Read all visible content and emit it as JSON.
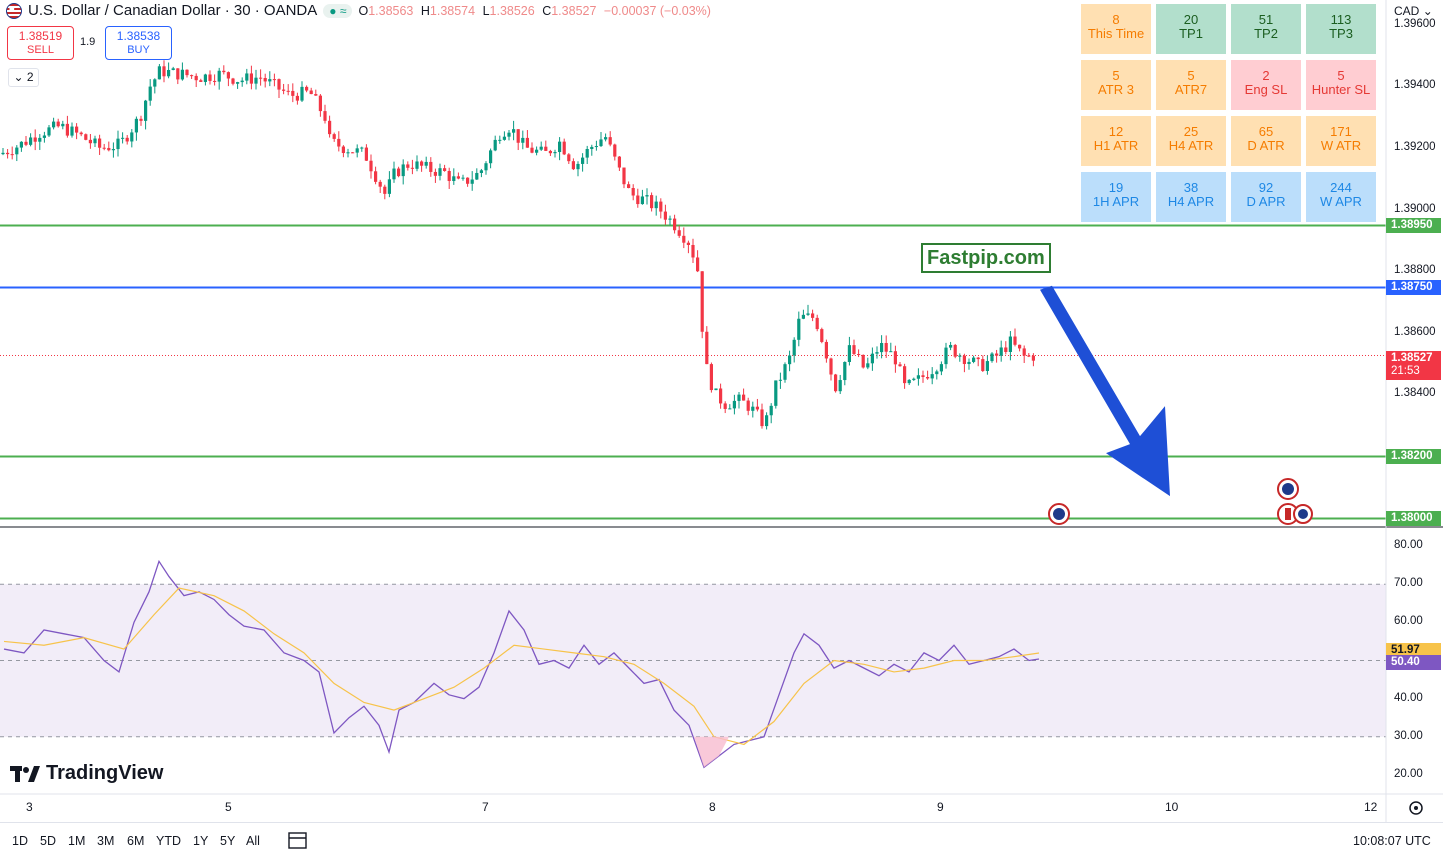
{
  "header": {
    "symbol": "U.S. Dollar / Canadian Dollar · 30 · OANDA",
    "status": "≈",
    "ohlc": {
      "o_label": "O",
      "o": "1.38563",
      "h_label": "H",
      "h": "1.38574",
      "l_label": "L",
      "l": "1.38526",
      "c_label": "C",
      "c": "1.38527",
      "change": "−0.00037 (−0.03%)"
    },
    "sell_price": "1.38519",
    "sell_label": "SELL",
    "buy_price": "1.38538",
    "buy_label": "BUY",
    "spread": "1.9",
    "collapse_count": "2"
  },
  "info_grid": [
    [
      {
        "v": "8",
        "l": "This Time",
        "c": "orange"
      },
      {
        "v": "20",
        "l": "TP1",
        "c": "green"
      },
      {
        "v": "51",
        "l": "TP2",
        "c": "green"
      },
      {
        "v": "113",
        "l": "TP3",
        "c": "green"
      }
    ],
    [
      {
        "v": "5",
        "l": "ATR 3",
        "c": "orange"
      },
      {
        "v": "5",
        "l": "ATR7",
        "c": "orange"
      },
      {
        "v": "2",
        "l": "Eng SL",
        "c": "pink"
      },
      {
        "v": "5",
        "l": "Hunter SL",
        "c": "pink"
      }
    ],
    [
      {
        "v": "12",
        "l": "H1 ATR",
        "c": "orange"
      },
      {
        "v": "25",
        "l": "H4 ATR",
        "c": "orange"
      },
      {
        "v": "65",
        "l": "D ATR",
        "c": "orange"
      },
      {
        "v": "171",
        "l": "W ATR",
        "c": "orange"
      }
    ],
    [
      {
        "v": "19",
        "l": "1H APR",
        "c": "blue"
      },
      {
        "v": "38",
        "l": "H4 APR",
        "c": "blue"
      },
      {
        "v": "92",
        "l": "D APR",
        "c": "blue"
      },
      {
        "v": "244",
        "l": "W APR",
        "c": "blue"
      }
    ]
  ],
  "watermark": "Fastpip.com",
  "brand": "TradingView",
  "currency": "CAD",
  "current_price": "1.38527",
  "countdown": "21:53",
  "timeframes": [
    "1D",
    "5D",
    "1M",
    "3M",
    "6M",
    "YTD",
    "1Y",
    "5Y",
    "All"
  ],
  "clock": "10:08:07 UTC",
  "colors": {
    "up": "#089981",
    "down": "#f23645",
    "level_green": "#4caf50",
    "level_blue": "#2962ff",
    "arrow": "#1e4fd6",
    "rsi": "#7e57c2",
    "rsi_ma": "#f7c34a"
  },
  "chart_data": [
    {
      "type": "candlestick",
      "title": "U.S. Dollar / Canadian Dollar · 30 · OANDA",
      "x_ticks": [
        "3",
        "5",
        "7",
        "8",
        "9",
        "10",
        "12"
      ],
      "y_ticks": [
        "1.39600",
        "1.39400",
        "1.39200",
        "1.39000",
        "1.38800",
        "1.38600",
        "1.38400"
      ],
      "ylim": [
        1.3797,
        1.3968
      ],
      "levels": [
        {
          "value": 1.3895,
          "label": "1.38950",
          "color": "green"
        },
        {
          "value": 1.3875,
          "label": "1.38750",
          "color": "blue"
        },
        {
          "value": 1.382,
          "label": "1.38200",
          "color": "green"
        },
        {
          "value": 1.38,
          "label": "1.38000",
          "color": "green"
        }
      ],
      "last_price": 1.38527,
      "close_path": [
        [
          0,
          1.3918
        ],
        [
          20,
          1.3921
        ],
        [
          40,
          1.3925
        ],
        [
          60,
          1.3927
        ],
        [
          80,
          1.3924
        ],
        [
          100,
          1.392
        ],
        [
          120,
          1.3921
        ],
        [
          140,
          1.393
        ],
        [
          150,
          1.394
        ],
        [
          160,
          1.3945
        ],
        [
          180,
          1.3944
        ],
        [
          200,
          1.3943
        ],
        [
          220,
          1.3944
        ],
        [
          240,
          1.3942
        ],
        [
          260,
          1.3943
        ],
        [
          275,
          1.394
        ],
        [
          290,
          1.3937
        ],
        [
          310,
          1.3938
        ],
        [
          325,
          1.393
        ],
        [
          330,
          1.3922
        ],
        [
          345,
          1.392
        ],
        [
          365,
          1.3918
        ],
        [
          385,
          1.3905
        ],
        [
          395,
          1.3912
        ],
        [
          410,
          1.3915
        ],
        [
          430,
          1.3913
        ],
        [
          445,
          1.3912
        ],
        [
          460,
          1.3908
        ],
        [
          480,
          1.3912
        ],
        [
          500,
          1.3925
        ],
        [
          510,
          1.3927
        ],
        [
          525,
          1.392
        ],
        [
          545,
          1.3918
        ],
        [
          560,
          1.3922
        ],
        [
          575,
          1.3914
        ],
        [
          590,
          1.392
        ],
        [
          605,
          1.3924
        ],
        [
          620,
          1.3912
        ],
        [
          630,
          1.3905
        ],
        [
          645,
          1.3903
        ],
        [
          660,
          1.39
        ],
        [
          675,
          1.3895
        ],
        [
          690,
          1.3889
        ],
        [
          698,
          1.388
        ],
        [
          705,
          1.385
        ],
        [
          715,
          1.384
        ],
        [
          725,
          1.3837
        ],
        [
          740,
          1.3838
        ],
        [
          750,
          1.3836
        ],
        [
          765,
          1.383
        ],
        [
          775,
          1.3842
        ],
        [
          790,
          1.3852
        ],
        [
          800,
          1.3865
        ],
        [
          815,
          1.3865
        ],
        [
          825,
          1.3855
        ],
        [
          835,
          1.3842
        ],
        [
          850,
          1.3855
        ],
        [
          865,
          1.3848
        ],
        [
          880,
          1.3856
        ],
        [
          895,
          1.3852
        ],
        [
          905,
          1.3842
        ],
        [
          920,
          1.3845
        ],
        [
          935,
          1.3849
        ],
        [
          950,
          1.3855
        ],
        [
          965,
          1.3852
        ],
        [
          980,
          1.3849
        ],
        [
          995,
          1.3852
        ],
        [
          1010,
          1.3857
        ],
        [
          1025,
          1.3852
        ],
        [
          1035,
          1.38527
        ]
      ],
      "forecast_arrow": {
        "from": 1.3874,
        "to": 1.3807
      }
    },
    {
      "type": "line",
      "title": "RSI",
      "y_ticks": [
        "80.00",
        "70.00",
        "60.00",
        "50.00",
        "40.00",
        "30.00",
        "20.00"
      ],
      "ylim": [
        15,
        85
      ],
      "band": [
        30,
        70
      ],
      "midline": 50,
      "last_values": {
        "rsi": "50.40",
        "ma": "51.97"
      },
      "series": [
        {
          "values": [
            [
              0,
              53
            ],
            [
              20,
              52
            ],
            [
              40,
              58
            ],
            [
              60,
              57
            ],
            [
              80,
              56
            ],
            [
              100,
              50
            ],
            [
              115,
              47
            ],
            [
              130,
              60
            ],
            [
              145,
              68
            ],
            [
              155,
              76
            ],
            [
              165,
              72
            ],
            [
              180,
              67
            ],
            [
              195,
              68
            ],
            [
              210,
              66
            ],
            [
              225,
              62
            ],
            [
              240,
              59
            ],
            [
              260,
              58
            ],
            [
              280,
              52
            ],
            [
              300,
              50
            ],
            [
              315,
              47
            ],
            [
              330,
              31
            ],
            [
              345,
              35
            ],
            [
              360,
              38
            ],
            [
              375,
              33
            ],
            [
              385,
              26
            ],
            [
              395,
              37
            ],
            [
              410,
              39
            ],
            [
              430,
              44
            ],
            [
              445,
              41
            ],
            [
              460,
              40
            ],
            [
              475,
              43
            ],
            [
              490,
              52
            ],
            [
              505,
              63
            ],
            [
              520,
              58
            ],
            [
              535,
              49
            ],
            [
              550,
              50
            ],
            [
              565,
              48
            ],
            [
              580,
              54
            ],
            [
              595,
              49
            ],
            [
              610,
              52
            ],
            [
              625,
              48
            ],
            [
              640,
              44
            ],
            [
              655,
              45
            ],
            [
              670,
              37
            ],
            [
              685,
              33
            ],
            [
              700,
              22
            ],
            [
              715,
              25
            ],
            [
              730,
              28
            ],
            [
              745,
              29
            ],
            [
              760,
              30
            ],
            [
              775,
              41
            ],
            [
              790,
              52
            ],
            [
              800,
              57
            ],
            [
              815,
              54
            ],
            [
              830,
              48
            ],
            [
              845,
              50
            ],
            [
              860,
              48
            ],
            [
              875,
              46
            ],
            [
              890,
              49
            ],
            [
              905,
              47
            ],
            [
              920,
              52
            ],
            [
              935,
              50
            ],
            [
              950,
              54
            ],
            [
              965,
              49
            ],
            [
              980,
              50
            ],
            [
              995,
              51
            ],
            [
              1010,
              53
            ],
            [
              1025,
              50
            ],
            [
              1035,
              50.4
            ]
          ]
        },
        {
          "values": [
            [
              0,
              55
            ],
            [
              40,
              54
            ],
            [
              80,
              56
            ],
            [
              120,
              53
            ],
            [
              150,
              62
            ],
            [
              175,
              69
            ],
            [
              210,
              67
            ],
            [
              240,
              63
            ],
            [
              270,
              57
            ],
            [
              300,
              52
            ],
            [
              330,
              44
            ],
            [
              360,
              39
            ],
            [
              390,
              37
            ],
            [
              420,
              40
            ],
            [
              450,
              43
            ],
            [
              480,
              48
            ],
            [
              510,
              54
            ],
            [
              540,
              53
            ],
            [
              570,
              52
            ],
            [
              600,
              51
            ],
            [
              630,
              49
            ],
            [
              660,
              44
            ],
            [
              690,
              38
            ],
            [
              710,
              30
            ],
            [
              740,
              28
            ],
            [
              770,
              34
            ],
            [
              800,
              44
            ],
            [
              830,
              50
            ],
            [
              860,
              49
            ],
            [
              890,
              47
            ],
            [
              920,
              48
            ],
            [
              950,
              50
            ],
            [
              980,
              50
            ],
            [
              1010,
              51
            ],
            [
              1035,
              51.97
            ]
          ]
        }
      ]
    }
  ]
}
